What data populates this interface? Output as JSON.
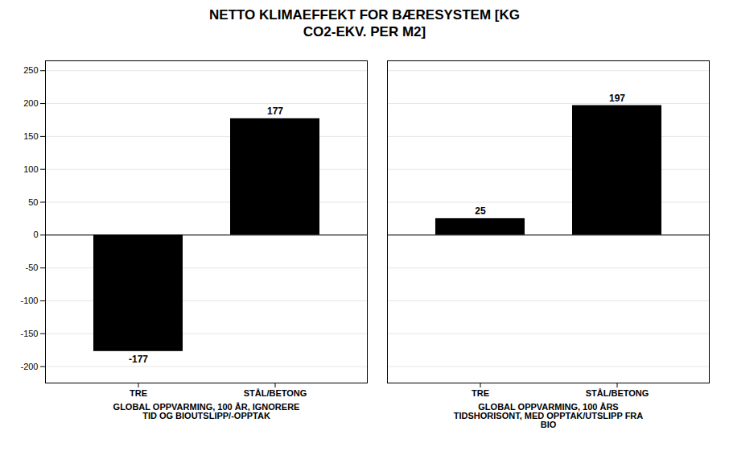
{
  "chart_data": {
    "type": "bar",
    "title": "NETTO KLIMAEFFEKT FOR BÆRESYSTEM [KG\nCO2-EKV. PER M2]",
    "groups": [
      {
        "label": "GLOBAL OPPVARMING, 100 ÅR, IGNORERE\nTID OG BIOUTSLIPP/-OPPTAK",
        "categories": [
          "TRE",
          "STÅL/BETONG"
        ],
        "values": [
          -177,
          177
        ]
      },
      {
        "label": "GLOBAL OPPVARMING, 100 ÅRS\nTIDSHORISONT, MED OPPTAK/UTSLIPP FRA\nBIO",
        "categories": [
          "TRE",
          "STÅL/BETONG"
        ],
        "values": [
          25,
          197
        ]
      }
    ],
    "ylim": [
      -225,
      265
    ],
    "yticks": [
      -200,
      -150,
      -100,
      -50,
      0,
      50,
      100,
      150,
      200,
      250
    ],
    "grid": true,
    "data_labels": true
  }
}
